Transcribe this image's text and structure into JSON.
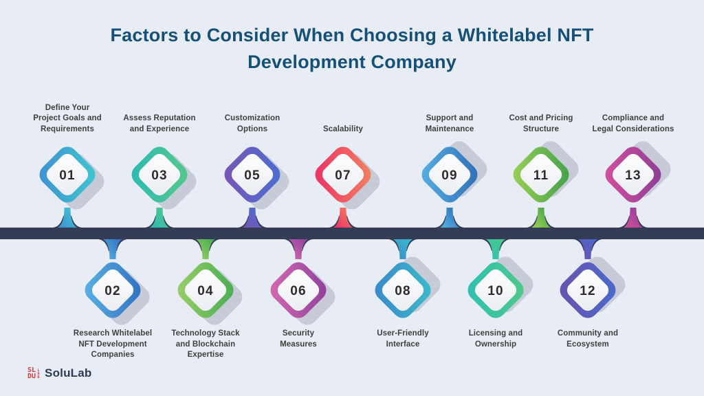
{
  "title": {
    "lines": [
      "Factors to Consider When Choosing a Whitelabel NFT",
      "Development Company"
    ]
  },
  "colors": {
    "background": "#e8ecf4",
    "title": "#155077",
    "bar": "#343c56",
    "number": "#2c2c2c",
    "label": "#3f3f3f",
    "shadow": "#8f96a8",
    "inner_light": "#ffffff",
    "inner_dark": "#e9ecf1",
    "logo_red": "#d7393d",
    "brand_text": "#2c3b52"
  },
  "timeline": {
    "items": [
      {
        "number": "01",
        "row": "top",
        "label_lines": [
          "Define Your",
          "Project Goals and",
          "Requirements"
        ],
        "c1": "#3e8fd0",
        "c2": "#41c8d1"
      },
      {
        "number": "02",
        "row": "bottom",
        "label_lines": [
          "Research Whitelabel",
          "NFT Development",
          "Companies"
        ],
        "c1": "#5cb3e4",
        "c2": "#2f6fc0"
      },
      {
        "number": "03",
        "row": "top",
        "label_lines": [
          "Assess Reputation",
          "and Experience"
        ],
        "c1": "#2cb9b4",
        "c2": "#56c98a"
      },
      {
        "number": "04",
        "row": "bottom",
        "label_lines": [
          "Technology Stack",
          "and Blockchain",
          "Expertise"
        ],
        "c1": "#9ed06a",
        "c2": "#44ab50"
      },
      {
        "number": "05",
        "row": "top",
        "label_lines": [
          "Customization",
          "Options"
        ],
        "c1": "#7a54b6",
        "c2": "#4a6fd2"
      },
      {
        "number": "06",
        "row": "bottom",
        "label_lines": [
          "Security",
          "Measures"
        ],
        "c1": "#d76bb0",
        "c2": "#8c3f9c"
      },
      {
        "number": "07",
        "row": "top",
        "label_lines": [
          "Scalability"
        ],
        "c1": "#eb2e67",
        "c2": "#f2855f"
      },
      {
        "number": "08",
        "row": "bottom",
        "label_lines": [
          "User-Friendly",
          "Interface"
        ],
        "c1": "#3a86ca",
        "c2": "#3cbcca"
      },
      {
        "number": "09",
        "row": "top",
        "label_lines": [
          "Support and",
          "Maintenance"
        ],
        "c1": "#58b2e4",
        "c2": "#2e6cb6"
      },
      {
        "number": "10",
        "row": "bottom",
        "label_lines": [
          "Licensing and",
          "Ownership"
        ],
        "c1": "#2ec0b4",
        "c2": "#4fc987"
      },
      {
        "number": "11",
        "row": "top",
        "label_lines": [
          "Cost and Pricing",
          "Structure"
        ],
        "c1": "#9ed257",
        "c2": "#3f9e4a"
      },
      {
        "number": "12",
        "row": "bottom",
        "label_lines": [
          "Community and",
          "Ecosystem"
        ],
        "c1": "#6a51ae",
        "c2": "#4a6ace"
      },
      {
        "number": "13",
        "row": "top",
        "label_lines": [
          "Compliance and",
          "Legal Considerations"
        ],
        "c1": "#d6509e",
        "c2": "#8b3d96"
      }
    ]
  },
  "footer": {
    "brand": "SoluLab",
    "mark_top": "SL",
    "mark_bottom": "DU",
    "mark_side": "LAB"
  }
}
